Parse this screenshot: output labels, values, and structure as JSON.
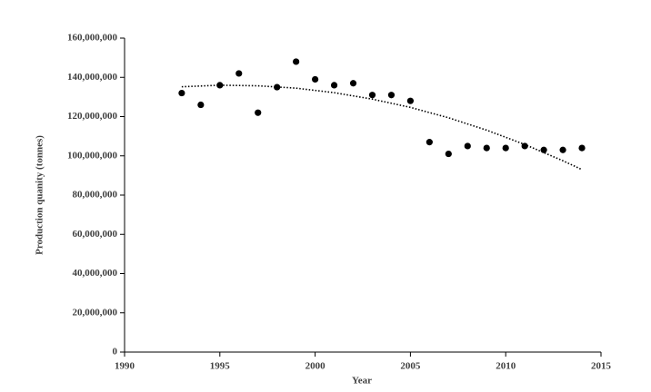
{
  "chart_data": {
    "type": "scatter",
    "x_label": "Year",
    "y_label": "Production quanity (tonnes)",
    "x": [
      1993,
      1994,
      1995,
      1996,
      1997,
      1998,
      1999,
      2000,
      2001,
      2002,
      2003,
      2004,
      2005,
      2006,
      2007,
      2008,
      2009,
      2010,
      2011,
      2012,
      2013,
      2014
    ],
    "values": [
      132000000,
      126000000,
      136000000,
      142000000,
      122000000,
      135000000,
      148000000,
      139000000,
      136000000,
      137000000,
      131000000,
      131000000,
      128000000,
      107000000,
      101000000,
      105000000,
      104000000,
      104000000,
      105000000,
      103000000,
      103000000,
      104000000
    ],
    "color": "#000000",
    "trendline": {
      "x": [
        1993,
        1995,
        1997,
        1999,
        2001,
        2003,
        2005,
        2007,
        2009,
        2011,
        2013,
        2014
      ],
      "values": [
        135200000,
        136000000,
        135700000,
        134500000,
        132200000,
        128900000,
        124700000,
        119400000,
        113100000,
        105800000,
        97500000,
        93000000
      ],
      "color": "#000000"
    },
    "xlim": [
      1990,
      2015
    ],
    "xticks": [
      1990,
      1995,
      2000,
      2005,
      2010,
      2015
    ],
    "ylim": [
      0,
      160000000
    ],
    "yticks": [
      {
        "value": 0,
        "label": "0"
      },
      {
        "value": 20000000,
        "label": "20,000,000"
      },
      {
        "value": 40000000,
        "label": "40,000,000"
      },
      {
        "value": 60000000,
        "label": "60,000,000"
      },
      {
        "value": 80000000,
        "label": "80,000,000"
      },
      {
        "value": 100000000,
        "label": "100,000,000"
      },
      {
        "value": 120000000,
        "label": "120,000,000"
      },
      {
        "value": 140000000,
        "label": "140,000,000"
      },
      {
        "value": 160000000,
        "label": "160,000,000"
      }
    ],
    "grid": false
  }
}
